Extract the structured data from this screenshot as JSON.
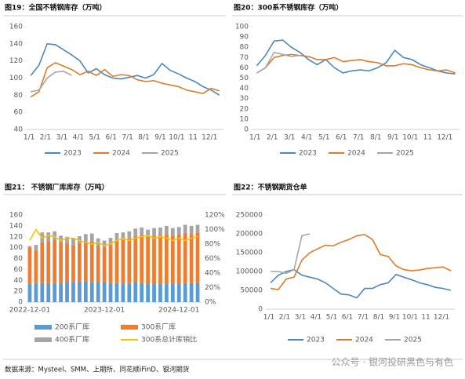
{
  "chart_data": [
    {
      "type": "line",
      "title": "图19：全国不锈钢库存（万吨）",
      "categories": [
        "1/1",
        null,
        "2/1",
        null,
        "3/1",
        null,
        "4/1",
        null,
        "5/1",
        null,
        "6/1",
        null,
        "7/1",
        null,
        "8/1",
        null,
        "9/1",
        null,
        "10/1",
        null,
        "11",
        null,
        "12/1",
        null
      ],
      "series": [
        {
          "name": "2023",
          "color": "#4a88c0",
          "values": [
            103,
            115,
            140,
            139,
            133,
            127,
            120,
            106,
            111,
            104,
            100,
            99,
            101,
            103,
            100,
            104,
            117,
            109,
            105,
            100,
            96,
            90,
            86,
            80
          ]
        },
        {
          "name": "2024",
          "color": "#e07b28",
          "values": [
            78,
            84,
            112,
            118,
            114,
            110,
            104,
            108,
            103,
            110,
            102,
            104,
            103,
            98,
            96,
            97,
            94,
            92,
            90,
            86,
            84,
            82,
            88,
            85
          ]
        },
        {
          "name": "2025",
          "color": "#a5a5a5",
          "values": [
            84,
            86,
            100,
            107,
            108,
            103,
            null,
            null,
            null,
            null,
            null,
            null,
            null,
            null,
            null,
            null,
            null,
            null,
            null,
            null,
            null,
            null,
            null,
            null
          ]
        }
      ],
      "ylim": [
        40,
        160
      ],
      "yticks": [
        40,
        60,
        80,
        100,
        120,
        140,
        160
      ],
      "grid": false
    },
    {
      "type": "line",
      "title": "图20：300系不锈钢库存（万吨）",
      "categories": [
        "1/1",
        null,
        "2/1",
        null,
        "3/1",
        null,
        "4/1",
        null,
        "5/1",
        null,
        "6/1",
        null,
        "7/1",
        null,
        "8/1",
        null,
        "9/1",
        null,
        "10/1",
        null,
        "11",
        null,
        "12/1",
        null
      ],
      "series": [
        {
          "name": "2023",
          "color": "#4a88c0",
          "values": [
            62,
            72,
            86,
            87,
            80,
            75,
            68,
            63,
            68,
            60,
            55,
            57,
            58,
            57,
            60,
            65,
            77,
            70,
            68,
            63,
            60,
            57,
            55,
            54
          ]
        },
        {
          "name": "2024",
          "color": "#e07b28",
          "values": [
            55,
            60,
            70,
            72,
            73,
            72,
            71,
            68,
            68,
            70,
            66,
            67,
            68,
            66,
            65,
            62,
            62,
            64,
            63,
            60,
            58,
            57,
            58,
            55
          ]
        },
        {
          "name": "2025",
          "color": "#a5a5a5",
          "values": [
            55,
            60,
            75,
            73,
            71,
            72,
            null,
            null,
            null,
            null,
            null,
            null,
            null,
            null,
            null,
            null,
            null,
            null,
            null,
            null,
            null,
            null,
            null,
            null
          ]
        }
      ],
      "ylim": [
        0,
        100
      ],
      "yticks": [
        0,
        10,
        20,
        30,
        40,
        50,
        60,
        70,
        80,
        90,
        100
      ],
      "grid": false
    },
    {
      "type": "bar",
      "title": "图21：  不锈钢厂库库存（万吨）",
      "categories": [
        "2022-12-01",
        null,
        null,
        null,
        null,
        null,
        null,
        null,
        null,
        null,
        null,
        null,
        "2023-12-01",
        null,
        null,
        null,
        null,
        null,
        null,
        null,
        null,
        null,
        null,
        null,
        "2024-12-01",
        null,
        null,
        null
      ],
      "series": [
        {
          "name": "200系厂库",
          "color": "#5b9bd5",
          "values": [
            33,
            35,
            35,
            34,
            35,
            35,
            36,
            37,
            38,
            38,
            37,
            36,
            36,
            35,
            35,
            34,
            35,
            36,
            35,
            34,
            34,
            33,
            33,
            34,
            34,
            35,
            35,
            35
          ]
        },
        {
          "name": "300系厂库",
          "color": "#ed7d31",
          "values": [
            67,
            60,
            75,
            78,
            80,
            75,
            72,
            68,
            70,
            72,
            75,
            68,
            65,
            70,
            78,
            80,
            82,
            85,
            88,
            86,
            88,
            90,
            92,
            88,
            90,
            92,
            90,
            93
          ]
        },
        {
          "name": "400系厂库",
          "color": "#a5a5a5",
          "values": [
            3,
            10,
            18,
            16,
            15,
            12,
            12,
            13,
            13,
            15,
            14,
            13,
            12,
            13,
            14,
            14,
            13,
            14,
            14,
            13,
            14,
            14,
            15,
            14,
            14,
            15,
            15,
            14
          ]
        },
        {
          "name": "300系总计库销比",
          "color": "#ffc000",
          "axis": "y2",
          "values": [
            85,
            100,
            88,
            92,
            90,
            85,
            88,
            88,
            85,
            82,
            80,
            82,
            78,
            80,
            85,
            88,
            85,
            88,
            90,
            92,
            88,
            90,
            88,
            85,
            88,
            85,
            88,
            90
          ]
        }
      ],
      "ylim": [
        0,
        160
      ],
      "yticks": [
        0,
        20,
        40,
        60,
        80,
        100,
        120,
        140,
        160
      ],
      "y2lim": [
        0,
        120
      ],
      "y2ticks": [
        {
          "value": 0,
          "label": "0%"
        },
        {
          "value": 20,
          "label": "20%"
        },
        {
          "value": 40,
          "label": "40%"
        },
        {
          "value": 60,
          "label": "60%"
        },
        {
          "value": 80,
          "label": "80%"
        },
        {
          "value": 100,
          "label": "100%"
        },
        {
          "value": 120,
          "label": "120%"
        }
      ],
      "grid": false
    },
    {
      "type": "line",
      "title": "图22：不锈钢期货仓单",
      "categories": [
        "1/1",
        null,
        "2/1",
        null,
        "3/1",
        null,
        "4/1",
        null,
        "5/1",
        null,
        "6/1",
        null,
        "7/1",
        null,
        "8/1",
        null,
        "9/1",
        null,
        "10/1",
        null,
        "11",
        null,
        "12/1",
        null
      ],
      "series": [
        {
          "name": "2023",
          "color": "#4a88c0",
          "values": [
            70000,
            90000,
            100000,
            105000,
            90000,
            85000,
            80000,
            70000,
            55000,
            40000,
            38000,
            30000,
            55000,
            55000,
            65000,
            70000,
            92000,
            85000,
            78000,
            70000,
            65000,
            58000,
            55000,
            50000
          ]
        },
        {
          "name": "2024",
          "color": "#e07b28",
          "values": [
            55000,
            52000,
            80000,
            85000,
            130000,
            150000,
            160000,
            170000,
            168000,
            178000,
            185000,
            195000,
            198000,
            185000,
            145000,
            140000,
            115000,
            105000,
            102000,
            104000,
            108000,
            110000,
            112000,
            102000
          ]
        },
        {
          "name": "2025",
          "color": "#a5a5a5",
          "values": [
            100000,
            100000,
            95000,
            105000,
            195000,
            200000,
            null,
            null,
            null,
            null,
            null,
            null,
            null,
            null,
            null,
            null,
            null,
            null,
            null,
            null,
            null,
            null,
            null,
            null
          ]
        }
      ],
      "ylim": [
        0,
        250000
      ],
      "yticks": [
        0,
        50000,
        100000,
        150000,
        200000,
        250000
      ],
      "grid": false
    }
  ],
  "source": "数据来源：Mysteel、SMM、上期所、同花顺iFinD、银河期货",
  "watermark": "公众号 · 银河投研黑色与有色"
}
